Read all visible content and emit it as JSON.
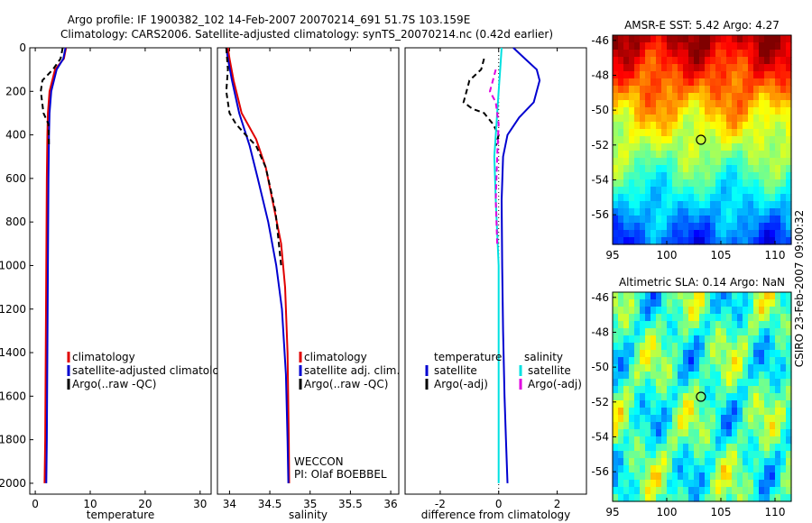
{
  "header": {
    "line1": "Argo profile: IF 1900382_102 14-Feb-2007 20070214_691 51.7S 103.159E",
    "line2": "Climatology: CARS2006. Satellite-adjusted climatology: synTS_20070214.nc (0.42d earlier)"
  },
  "side_label": "CSIRO 23-Feb-2007 09:00:32",
  "chart_data": [
    {
      "type": "line",
      "panel": "temperature",
      "xlabel": "temperature",
      "ylabel": "",
      "xlim": [
        -1,
        32
      ],
      "ylim": [
        2050,
        0
      ],
      "xticks": [
        0,
        10,
        20,
        30
      ],
      "yticks": [
        0,
        200,
        400,
        600,
        800,
        1000,
        1200,
        1400,
        1600,
        1800,
        2000
      ],
      "legend": [
        "climatology",
        "satellite-adjusted climatolog",
        "Argo(..raw -QC)"
      ],
      "series": [
        {
          "name": "climatology",
          "color": "#e00000",
          "dash": "",
          "x": [
            5.6,
            5.2,
            3.6,
            2.6,
            2.3,
            2.2,
            2.1,
            2.0,
            1.9,
            1.8,
            1.7
          ],
          "y": [
            0,
            50,
            100,
            200,
            300,
            400,
            600,
            1000,
            1400,
            1800,
            2000
          ]
        },
        {
          "name": "satellite-adjusted climatolog",
          "color": "#0000d0",
          "dash": "",
          "x": [
            5.5,
            5.1,
            3.9,
            2.9,
            2.6,
            2.5,
            2.4,
            2.3,
            2.2,
            2.1,
            2.0
          ],
          "y": [
            0,
            50,
            100,
            200,
            300,
            400,
            600,
            1000,
            1400,
            1800,
            2000
          ]
        },
        {
          "name": "Argo(..raw -QC)",
          "color": "#000000",
          "dash": "6,4",
          "x": [
            5.0,
            4.6,
            3.2,
            1.3,
            1.0,
            1.5,
            2.4,
            2.5
          ],
          "y": [
            0,
            50,
            100,
            150,
            200,
            300,
            350,
            450
          ]
        }
      ]
    },
    {
      "type": "line",
      "panel": "salinity",
      "xlabel": "salinity",
      "ylabel": "",
      "xlim": [
        33.85,
        36.1
      ],
      "ylim": [
        2050,
        0
      ],
      "xticks": [
        34,
        34.5,
        35,
        35.5,
        36
      ],
      "yticks": [],
      "legend": [
        "climatology",
        "satellite adj. clim.",
        "Argo(..raw -QC)"
      ],
      "annotations": [
        "WECCON",
        "PI: Olaf BOEBBEL"
      ],
      "series": [
        {
          "name": "climatology",
          "color": "#e00000",
          "dash": "",
          "x": [
            33.98,
            34.0,
            34.05,
            34.15,
            34.33,
            34.45,
            34.56,
            34.64,
            34.69,
            34.72,
            34.735,
            34.74
          ],
          "y": [
            0,
            50,
            150,
            300,
            420,
            550,
            750,
            900,
            1100,
            1400,
            1800,
            2000
          ]
        },
        {
          "name": "satellite adj. clim.",
          "color": "#0000d0",
          "dash": "",
          "x": [
            33.96,
            33.98,
            34.03,
            34.12,
            34.25,
            34.35,
            34.48,
            34.58,
            34.65,
            34.7,
            34.72,
            34.73
          ],
          "y": [
            0,
            50,
            150,
            300,
            450,
            600,
            800,
            1000,
            1200,
            1500,
            1800,
            2000
          ]
        },
        {
          "name": "Argo(..raw -QC)",
          "color": "#000000",
          "dash": "6,4",
          "x": [
            33.96,
            33.98,
            33.96,
            34.0,
            34.08,
            34.2,
            34.33,
            34.45,
            34.57,
            34.64
          ],
          "y": [
            0,
            100,
            200,
            300,
            350,
            400,
            450,
            550,
            750,
            1000
          ]
        }
      ]
    },
    {
      "type": "line",
      "panel": "difference",
      "xlabel": "difference from climatology",
      "ylabel": "",
      "xlim": [
        -3.2,
        3.0
      ],
      "ylim": [
        2050,
        0
      ],
      "xticks": [
        -2,
        0,
        2
      ],
      "yticks": [],
      "legend_titles": [
        "temperature",
        "salinity"
      ],
      "legend": [
        "satellite",
        "Argo(-adj)",
        "satellite",
        "Argo(-adj)"
      ],
      "series": [
        {
          "name": "satellite",
          "group": "temperature",
          "color": "#0000d0",
          "dash": "",
          "x": [
            0.5,
            0.9,
            1.3,
            1.4,
            1.2,
            0.7,
            0.3,
            0.15,
            0.1,
            0.12,
            0.15,
            0.2,
            0.25,
            0.3
          ],
          "y": [
            0,
            50,
            100,
            150,
            250,
            320,
            400,
            500,
            700,
            1000,
            1300,
            1600,
            1800,
            2000
          ]
        },
        {
          "name": "Argo(-adj)",
          "group": "temperature",
          "color": "#000000",
          "dash": "6,4",
          "x": [
            -0.5,
            -0.6,
            -1.0,
            -1.1,
            -1.2,
            -0.9,
            -0.5,
            -0.2,
            0.0,
            -0.1
          ],
          "y": [
            50,
            100,
            150,
            200,
            250,
            280,
            300,
            350,
            400,
            450
          ]
        },
        {
          "name": "satellite",
          "group": "salinity",
          "color": "#00e0e0",
          "dash": "",
          "x": [
            0.1,
            0.05,
            0.0,
            -0.05,
            -0.1,
            -0.15,
            -0.1,
            0.0,
            0.0,
            0.0,
            0.0
          ],
          "y": [
            0,
            100,
            200,
            300,
            400,
            500,
            700,
            1000,
            1400,
            1800,
            2000
          ]
        },
        {
          "name": "Argo(-adj)",
          "group": "salinity",
          "color": "#e000e0",
          "dash": "6,4",
          "x": [
            -0.1,
            -0.2,
            -0.3,
            -0.1,
            0.0,
            -0.05,
            -0.1,
            -0.05
          ],
          "y": [
            100,
            150,
            200,
            250,
            350,
            500,
            700,
            900
          ]
        }
      ]
    },
    {
      "type": "heatmap",
      "panel": "sst-map",
      "title": "AMSR-E SST: 5.42 Argo: 4.27",
      "xlim": [
        95,
        111.5
      ],
      "ylim": [
        -57.7,
        -45.7
      ],
      "xticks": [
        95,
        100,
        105,
        110
      ],
      "yticks": [
        -46,
        -48,
        -50,
        -52,
        -54,
        -56
      ],
      "marker": {
        "lon": 103.159,
        "lat": -51.7
      }
    },
    {
      "type": "heatmap",
      "panel": "sla-map",
      "title": "Altimetric SLA: 0.14 Argo: NaN",
      "xlim": [
        95,
        111.5
      ],
      "ylim": [
        -57.7,
        -45.7
      ],
      "xticks": [
        95,
        100,
        105,
        110
      ],
      "yticks": [
        -46,
        -48,
        -50,
        -52,
        -54,
        -56
      ],
      "marker": {
        "lon": 103.159,
        "lat": -51.7
      }
    }
  ]
}
